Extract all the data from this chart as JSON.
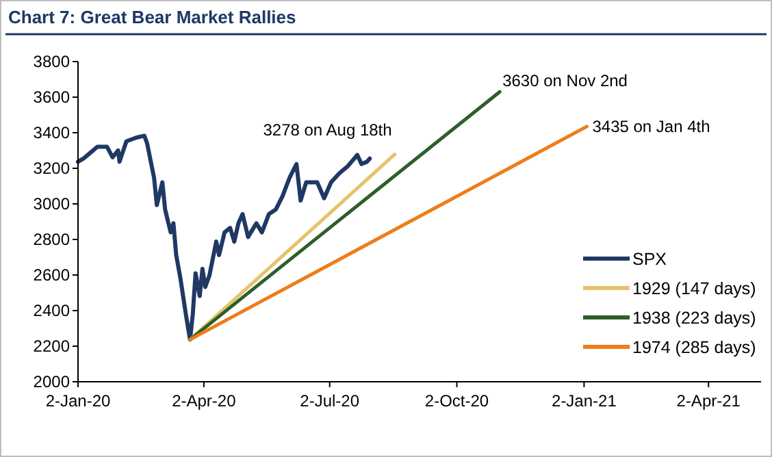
{
  "chart_data": {
    "type": "line",
    "title": "Chart 7: Great Bear Market Rallies",
    "xlim": [
      "2020-01-02",
      "2021-05-10"
    ],
    "xticks": [
      {
        "value": "2020-01-02",
        "label": "2-Jan-20"
      },
      {
        "value": "2020-04-02",
        "label": "2-Apr-20"
      },
      {
        "value": "2020-07-02",
        "label": "2-Jul-20"
      },
      {
        "value": "2020-10-02",
        "label": "2-Oct-20"
      },
      {
        "value": "2021-01-02",
        "label": "2-Jan-21"
      },
      {
        "value": "2021-04-02",
        "label": "2-Apr-21"
      }
    ],
    "ylim": [
      2000,
      3800
    ],
    "yticks": [
      2000,
      2200,
      2400,
      2600,
      2800,
      3000,
      3200,
      3400,
      3600,
      3800
    ],
    "grid": false,
    "legend": "bottom right",
    "series": [
      {
        "name": "SPX",
        "color": "#1f3864",
        "x": [
          "2020-01-02",
          "2020-01-06",
          "2020-01-11",
          "2020-01-16",
          "2020-01-23",
          "2020-01-27",
          "2020-01-31",
          "2020-02-01",
          "2020-02-06",
          "2020-02-13",
          "2020-02-19",
          "2020-02-21",
          "2020-02-26",
          "2020-02-28",
          "2020-03-03",
          "2020-03-05",
          "2020-03-09",
          "2020-03-11",
          "2020-03-13",
          "2020-03-16",
          "2020-03-18",
          "2020-03-20",
          "2020-03-23",
          "2020-03-25",
          "2020-03-27",
          "2020-03-30",
          "2020-04-01",
          "2020-04-03",
          "2020-04-06",
          "2020-04-11",
          "2020-04-13",
          "2020-04-17",
          "2020-04-21",
          "2020-04-24",
          "2020-04-27",
          "2020-04-30",
          "2020-05-04",
          "2020-05-10",
          "2020-05-14",
          "2020-05-19",
          "2020-05-24",
          "2020-05-29",
          "2020-06-03",
          "2020-06-08",
          "2020-06-11",
          "2020-06-15",
          "2020-06-23",
          "2020-06-28",
          "2020-07-03",
          "2020-07-09",
          "2020-07-15",
          "2020-07-22",
          "2020-07-25",
          "2020-07-29",
          "2020-07-31"
        ],
        "values": [
          3237,
          3255,
          3288,
          3321,
          3321,
          3262,
          3300,
          3237,
          3352,
          3372,
          3383,
          3339,
          3147,
          2993,
          3121,
          2968,
          2840,
          2891,
          2712,
          2584,
          2482,
          2379,
          2237,
          2379,
          2610,
          2482,
          2635,
          2533,
          2597,
          2788,
          2712,
          2840,
          2865,
          2788,
          2891,
          2942,
          2814,
          2891,
          2840,
          2942,
          2968,
          3045,
          3147,
          3224,
          3019,
          3121,
          3121,
          3032,
          3121,
          3172,
          3211,
          3275,
          3224,
          3237,
          3255
        ]
      },
      {
        "name": "1929 (147 days)",
        "color": "#e6c36a",
        "x": [
          "2020-03-23",
          "2020-08-18"
        ],
        "values": [
          2237,
          3278
        ]
      },
      {
        "name": "1938 (223 days)",
        "color": "#2e5e2a",
        "x": [
          "2020-03-23",
          "2020-11-02"
        ],
        "values": [
          2237,
          3630
        ]
      },
      {
        "name": "1974 (285 days)",
        "color": "#ed7d1a",
        "x": [
          "2020-03-23",
          "2021-01-04"
        ],
        "values": [
          2237,
          3435
        ]
      }
    ],
    "annotations": [
      {
        "text": "3278 on Aug 18th",
        "x": "2020-08-18",
        "y": 3278
      },
      {
        "text": "3630 on Nov 2nd",
        "x": "2020-11-02",
        "y": 3630
      },
      {
        "text": "3435 on Jan 4th",
        "x": "2021-01-04",
        "y": 3435
      }
    ]
  }
}
